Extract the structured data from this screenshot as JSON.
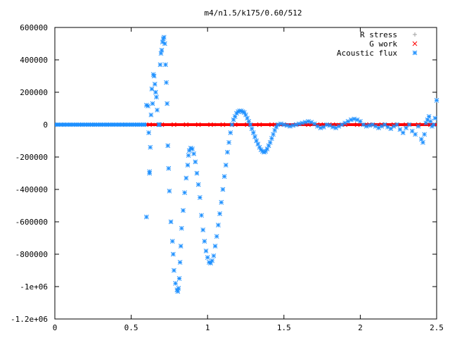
{
  "chart_data": {
    "type": "scatter",
    "title": "m4/n1.5/k175/0.60/512",
    "xlabel": "",
    "ylabel": "",
    "xlim": [
      0,
      2.5
    ],
    "ylim": [
      -1200000,
      600000
    ],
    "x_ticks": [
      0,
      0.5,
      1,
      1.5,
      2,
      2.5
    ],
    "x_tick_labels": [
      "0",
      "0.5",
      "1",
      "1.5",
      "2",
      "2.5"
    ],
    "y_ticks": [
      600000,
      400000,
      200000,
      0,
      -200000,
      -400000,
      -600000,
      -800000,
      -1000000,
      -1200000
    ],
    "y_tick_labels": [
      "600000",
      "400000",
      "200000",
      "0",
      "-200000",
      "-400000",
      "-600000",
      "-800000",
      "-1e+06",
      "-1.2e+06"
    ],
    "grid": false,
    "legend_position": "top-right",
    "series": [
      {
        "name": "R stress",
        "marker": "+",
        "color": "#a0a0a0",
        "points": [
          [
            0.05,
            0
          ],
          [
            0.25,
            0
          ],
          [
            0.45,
            0
          ],
          [
            0.65,
            0
          ],
          [
            0.85,
            0
          ],
          [
            1.05,
            0
          ],
          [
            1.25,
            0
          ],
          [
            1.45,
            0
          ],
          [
            1.65,
            0
          ],
          [
            1.85,
            0
          ],
          [
            2.05,
            0
          ],
          [
            2.25,
            0
          ],
          [
            2.45,
            0
          ]
        ]
      },
      {
        "name": "G work",
        "marker": "x",
        "color": "#ff0000",
        "points": [
          [
            0.62,
            0
          ],
          [
            0.7,
            0
          ],
          [
            0.78,
            0
          ],
          [
            0.86,
            0
          ],
          [
            0.94,
            0
          ],
          [
            1.02,
            0
          ],
          [
            1.1,
            0
          ],
          [
            1.18,
            0
          ],
          [
            1.26,
            0
          ],
          [
            1.34,
            0
          ],
          [
            1.42,
            0
          ],
          [
            1.5,
            0
          ],
          [
            1.58,
            0
          ],
          [
            1.66,
            0
          ],
          [
            1.74,
            0
          ],
          [
            1.82,
            0
          ],
          [
            1.9,
            0
          ],
          [
            1.98,
            0
          ],
          [
            2.06,
            0
          ],
          [
            2.14,
            0
          ],
          [
            2.22,
            0
          ],
          [
            2.3,
            0
          ],
          [
            2.38,
            0
          ],
          [
            2.46,
            0
          ]
        ]
      },
      {
        "name": "Acoustic flux",
        "marker": "*",
        "color": "#1e90ff",
        "points": [
          [
            0.02,
            0
          ],
          [
            0.06,
            0
          ],
          [
            0.1,
            0
          ],
          [
            0.14,
            0
          ],
          [
            0.18,
            0
          ],
          [
            0.22,
            0
          ],
          [
            0.26,
            0
          ],
          [
            0.3,
            0
          ],
          [
            0.34,
            0
          ],
          [
            0.38,
            0
          ],
          [
            0.42,
            0
          ],
          [
            0.46,
            0
          ],
          [
            0.5,
            0
          ],
          [
            0.54,
            0
          ],
          [
            0.58,
            0
          ],
          [
            0.6,
            -570000
          ],
          [
            0.6,
            120000
          ],
          [
            0.61,
            115000
          ],
          [
            0.615,
            -50000
          ],
          [
            0.62,
            -290000
          ],
          [
            0.62,
            -300000
          ],
          [
            0.625,
            -140000
          ],
          [
            0.63,
            60000
          ],
          [
            0.635,
            220000
          ],
          [
            0.64,
            130000
          ],
          [
            0.645,
            310000
          ],
          [
            0.65,
            300000
          ],
          [
            0.655,
            250000
          ],
          [
            0.66,
            200000
          ],
          [
            0.665,
            170000
          ],
          [
            0.67,
            90000
          ],
          [
            0.68,
            0
          ],
          [
            0.685,
            0
          ],
          [
            0.69,
            370000
          ],
          [
            0.695,
            440000
          ],
          [
            0.7,
            460000
          ],
          [
            0.705,
            510000
          ],
          [
            0.71,
            530000
          ],
          [
            0.715,
            540000
          ],
          [
            0.72,
            500000
          ],
          [
            0.725,
            370000
          ],
          [
            0.73,
            260000
          ],
          [
            0.735,
            130000
          ],
          [
            0.74,
            -130000
          ],
          [
            0.745,
            -270000
          ],
          [
            0.75,
            -410000
          ],
          [
            0.76,
            -600000
          ],
          [
            0.77,
            -720000
          ],
          [
            0.775,
            -800000
          ],
          [
            0.78,
            -900000
          ],
          [
            0.79,
            -980000
          ],
          [
            0.8,
            -1020000
          ],
          [
            0.805,
            -1030000
          ],
          [
            0.81,
            -1010000
          ],
          [
            0.815,
            -950000
          ],
          [
            0.82,
            -850000
          ],
          [
            0.825,
            -750000
          ],
          [
            0.83,
            -640000
          ],
          [
            0.84,
            -530000
          ],
          [
            0.85,
            -420000
          ],
          [
            0.86,
            -330000
          ],
          [
            0.87,
            -250000
          ],
          [
            0.875,
            -190000
          ],
          [
            0.88,
            -160000
          ],
          [
            0.89,
            -145000
          ],
          [
            0.9,
            -150000
          ],
          [
            0.91,
            -180000
          ],
          [
            0.92,
            -230000
          ],
          [
            0.93,
            -300000
          ],
          [
            0.94,
            -370000
          ],
          [
            0.95,
            -450000
          ],
          [
            0.96,
            -560000
          ],
          [
            0.97,
            -650000
          ],
          [
            0.98,
            -720000
          ],
          [
            0.99,
            -780000
          ],
          [
            1.0,
            -820000
          ],
          [
            1.01,
            -850000
          ],
          [
            1.02,
            -855000
          ],
          [
            1.03,
            -840000
          ],
          [
            1.04,
            -810000
          ],
          [
            1.05,
            -750000
          ],
          [
            1.06,
            -690000
          ],
          [
            1.07,
            -620000
          ],
          [
            1.08,
            -550000
          ],
          [
            1.09,
            -480000
          ],
          [
            1.1,
            -400000
          ],
          [
            1.11,
            -320000
          ],
          [
            1.12,
            -250000
          ],
          [
            1.13,
            -170000
          ],
          [
            1.14,
            -110000
          ],
          [
            1.15,
            -50000
          ],
          [
            1.16,
            0
          ],
          [
            1.17,
            30000
          ],
          [
            1.18,
            50000
          ],
          [
            1.19,
            70000
          ],
          [
            1.2,
            80000
          ],
          [
            1.21,
            85000
          ],
          [
            1.22,
            85000
          ],
          [
            1.23,
            80000
          ],
          [
            1.24,
            75000
          ],
          [
            1.25,
            60000
          ],
          [
            1.26,
            40000
          ],
          [
            1.27,
            20000
          ],
          [
            1.28,
            0
          ],
          [
            1.29,
            -25000
          ],
          [
            1.3,
            -50000
          ],
          [
            1.31,
            -75000
          ],
          [
            1.32,
            -100000
          ],
          [
            1.33,
            -120000
          ],
          [
            1.34,
            -140000
          ],
          [
            1.35,
            -155000
          ],
          [
            1.36,
            -165000
          ],
          [
            1.37,
            -170000
          ],
          [
            1.38,
            -165000
          ],
          [
            1.39,
            -150000
          ],
          [
            1.4,
            -130000
          ],
          [
            1.41,
            -110000
          ],
          [
            1.42,
            -85000
          ],
          [
            1.43,
            -60000
          ],
          [
            1.44,
            -35000
          ],
          [
            1.45,
            -15000
          ],
          [
            1.46,
            0
          ],
          [
            1.48,
            5000
          ],
          [
            1.5,
            0
          ],
          [
            1.52,
            -5000
          ],
          [
            1.54,
            -10000
          ],
          [
            1.56,
            -5000
          ],
          [
            1.58,
            0
          ],
          [
            1.6,
            5000
          ],
          [
            1.62,
            10000
          ],
          [
            1.64,
            15000
          ],
          [
            1.66,
            20000
          ],
          [
            1.68,
            15000
          ],
          [
            1.7,
            5000
          ],
          [
            1.72,
            -10000
          ],
          [
            1.74,
            -20000
          ],
          [
            1.76,
            -15000
          ],
          [
            1.78,
            0
          ],
          [
            1.8,
            -5000
          ],
          [
            1.82,
            -15000
          ],
          [
            1.84,
            -20000
          ],
          [
            1.86,
            -10000
          ],
          [
            1.88,
            0
          ],
          [
            1.9,
            10000
          ],
          [
            1.92,
            20000
          ],
          [
            1.94,
            30000
          ],
          [
            1.96,
            35000
          ],
          [
            1.98,
            30000
          ],
          [
            2.0,
            20000
          ],
          [
            2.02,
            0
          ],
          [
            2.04,
            -10000
          ],
          [
            2.06,
            -5000
          ],
          [
            2.08,
            0
          ],
          [
            2.1,
            -10000
          ],
          [
            2.12,
            -20000
          ],
          [
            2.14,
            -10000
          ],
          [
            2.16,
            0
          ],
          [
            2.18,
            -15000
          ],
          [
            2.2,
            -25000
          ],
          [
            2.22,
            -10000
          ],
          [
            2.24,
            0
          ],
          [
            2.26,
            -30000
          ],
          [
            2.28,
            -50000
          ],
          [
            2.3,
            -20000
          ],
          [
            2.32,
            0
          ],
          [
            2.34,
            -40000
          ],
          [
            2.36,
            -60000
          ],
          [
            2.38,
            -10000
          ],
          [
            2.4,
            -90000
          ],
          [
            2.41,
            -110000
          ],
          [
            2.42,
            -60000
          ],
          [
            2.43,
            10000
          ],
          [
            2.44,
            30000
          ],
          [
            2.45,
            50000
          ],
          [
            2.46,
            20000
          ],
          [
            2.47,
            -10000
          ],
          [
            2.48,
            0
          ],
          [
            2.49,
            40000
          ],
          [
            2.5,
            150000
          ]
        ]
      }
    ]
  }
}
